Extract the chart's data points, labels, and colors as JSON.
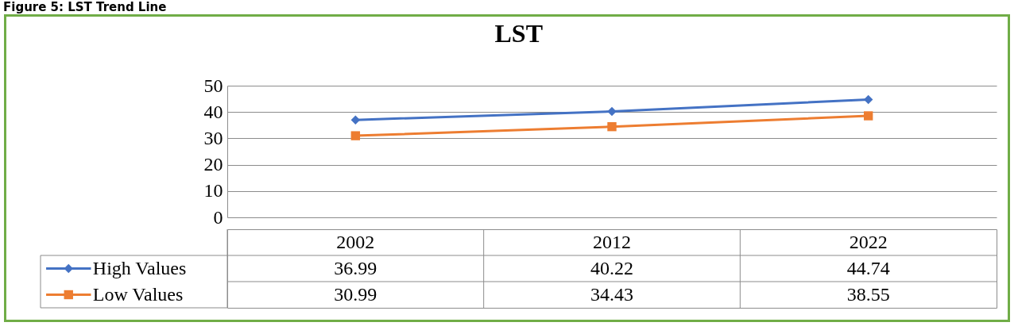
{
  "chart_data": {
    "type": "line",
    "title": "LST",
    "annotations": [
      "Figure 5: LST Trend Line"
    ],
    "categories": [
      "2002",
      "2012",
      "2022"
    ],
    "series": [
      {
        "name": "High Values",
        "color": "#4472c4",
        "marker": "diamond",
        "values": [
          36.99,
          40.22,
          44.74
        ]
      },
      {
        "name": "Low Values",
        "color": "#ed7d31",
        "marker": "square",
        "values": [
          30.99,
          34.43,
          38.55
        ]
      }
    ],
    "ylim": [
      0,
      50
    ],
    "yticks": [
      0,
      10,
      20,
      30,
      40,
      50
    ],
    "grid": "y",
    "legend": "bottom",
    "data_labels": true
  }
}
